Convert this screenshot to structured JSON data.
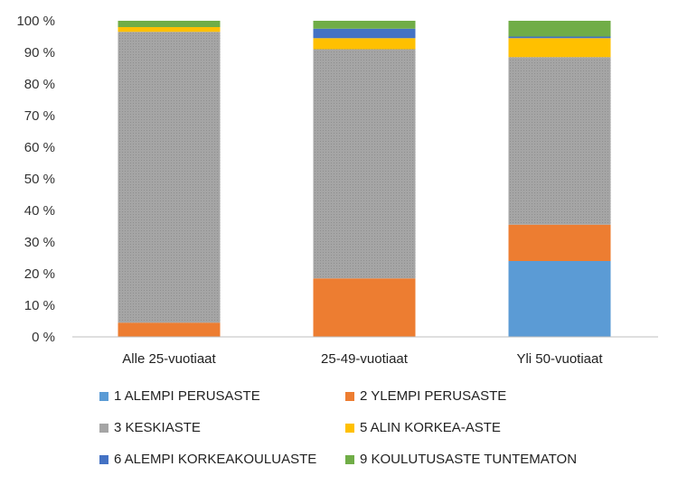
{
  "chart_data": {
    "type": "bar",
    "stacked": true,
    "categories": [
      "Alle 25-vuotiaat",
      "25-49-vuotiaat",
      "Yli 50-vuotiaat"
    ],
    "y_ticks": [
      "0 %",
      "10 %",
      "20 %",
      "30 %",
      "40 %",
      "50 %",
      "60 %",
      "70 %",
      "80 %",
      "90 %",
      "100 %"
    ],
    "ylim": [
      0,
      100
    ],
    "series": [
      {
        "name": "1 ALEMPI PERUSASTE",
        "color": "#5B9BD5",
        "values": [
          0,
          0,
          24
        ]
      },
      {
        "name": "2 YLEMPI PERUSASTE",
        "color": "#ED7D31",
        "values": [
          4.5,
          18.5,
          11.5
        ]
      },
      {
        "name": "3 KESKIASTE",
        "color": "#A5A5A5",
        "values": [
          92,
          72.5,
          53
        ]
      },
      {
        "name": "5 ALIN KORKEA-ASTE",
        "color": "#FFC000",
        "values": [
          1.5,
          3.5,
          6
        ]
      },
      {
        "name": "6 ALEMPI KORKEAKOULUASTE",
        "color": "#4472C4",
        "values": [
          0,
          3,
          0.5
        ]
      },
      {
        "name": "9 KOULUTUSASTE TUNTEMATON",
        "color": "#70AD47",
        "values": [
          2,
          2.5,
          5
        ]
      }
    ],
    "legend_position": "bottom"
  }
}
